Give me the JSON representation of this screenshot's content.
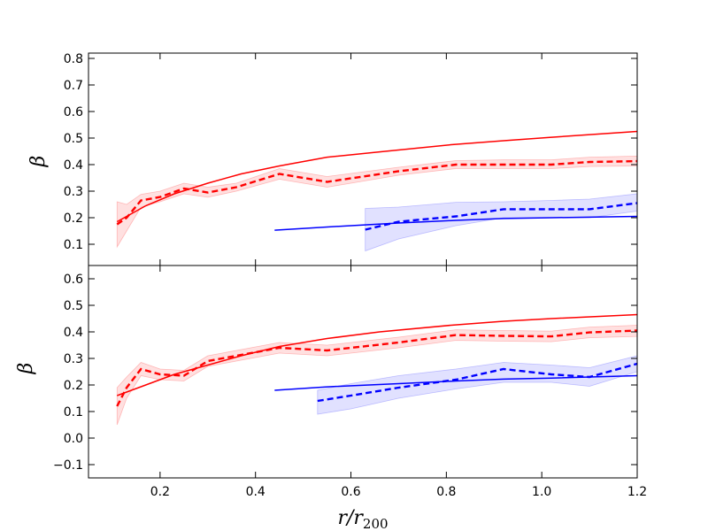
{
  "chart_data": [
    {
      "type": "line",
      "panel": "top",
      "title": "",
      "xlabel": "",
      "ylabel": "β",
      "xlim": [
        0.05,
        1.2
      ],
      "ylim": [
        0.02,
        0.82
      ],
      "xticks": [
        "0.2",
        "0.4",
        "0.6",
        "0.8",
        "1.0",
        "1.2"
      ],
      "yticks": [
        "0.1",
        "0.2",
        "0.3",
        "0.4",
        "0.5",
        "0.6",
        "0.7",
        "0.8"
      ],
      "series": [
        {
          "name": "red-solid",
          "color": "#ff0000",
          "style": "solid",
          "x": [
            0.11,
            0.17,
            0.23,
            0.3,
            0.37,
            0.45,
            0.55,
            0.66,
            0.81,
            0.92,
            1.02,
            1.2
          ],
          "y": [
            0.185,
            0.245,
            0.29,
            0.33,
            0.365,
            0.395,
            0.428,
            0.448,
            0.475,
            0.49,
            0.503,
            0.525
          ]
        },
        {
          "name": "red-dashed",
          "color": "#ff0000",
          "style": "dashed",
          "x": [
            0.11,
            0.13,
            0.16,
            0.2,
            0.25,
            0.3,
            0.36,
            0.45,
            0.55,
            0.7,
            0.82,
            0.92,
            1.02,
            1.1,
            1.2
          ],
          "y": [
            0.175,
            0.2,
            0.265,
            0.278,
            0.31,
            0.295,
            0.315,
            0.365,
            0.335,
            0.375,
            0.4,
            0.4,
            0.4,
            0.41,
            0.413
          ],
          "band_low": [
            0.09,
            0.15,
            0.24,
            0.26,
            0.29,
            0.277,
            0.3,
            0.345,
            0.315,
            0.36,
            0.385,
            0.385,
            0.385,
            0.393,
            0.395
          ],
          "band_high": [
            0.26,
            0.25,
            0.288,
            0.3,
            0.33,
            0.315,
            0.33,
            0.385,
            0.355,
            0.39,
            0.415,
            0.418,
            0.418,
            0.428,
            0.432
          ]
        },
        {
          "name": "blue-solid",
          "color": "#0000ff",
          "style": "solid",
          "x": [
            0.44,
            0.55,
            0.7,
            0.82,
            0.92,
            1.02,
            1.2
          ],
          "y": [
            0.153,
            0.165,
            0.18,
            0.19,
            0.197,
            0.2,
            0.205
          ]
        },
        {
          "name": "blue-dashed",
          "color": "#0000ff",
          "style": "dashed",
          "x": [
            0.63,
            0.7,
            0.82,
            0.92,
            1.02,
            1.1,
            1.2
          ],
          "y": [
            0.155,
            0.185,
            0.205,
            0.232,
            0.232,
            0.232,
            0.255
          ],
          "band_low": [
            0.075,
            0.12,
            0.17,
            0.2,
            0.2,
            0.2,
            0.225
          ],
          "band_high": [
            0.235,
            0.24,
            0.258,
            0.26,
            0.265,
            0.27,
            0.29
          ]
        }
      ]
    },
    {
      "type": "line",
      "panel": "bottom",
      "title": "",
      "xlabel": "r/r",
      "xlabel_sub": "200",
      "ylabel": "β",
      "xlim": [
        0.05,
        1.2
      ],
      "ylim": [
        -0.15,
        0.65
      ],
      "xticks": [
        "0.2",
        "0.4",
        "0.6",
        "0.8",
        "1.0",
        "1.2"
      ],
      "yticks": [
        "−0.1",
        "0.0",
        "0.1",
        "0.2",
        "0.3",
        "0.4",
        "0.5",
        "0.6"
      ],
      "series": [
        {
          "name": "red-solid",
          "color": "#ff0000",
          "style": "solid",
          "x": [
            0.11,
            0.17,
            0.23,
            0.3,
            0.37,
            0.45,
            0.55,
            0.66,
            0.81,
            0.92,
            1.02,
            1.2
          ],
          "y": [
            0.16,
            0.2,
            0.24,
            0.275,
            0.31,
            0.345,
            0.375,
            0.4,
            0.425,
            0.44,
            0.45,
            0.465
          ]
        },
        {
          "name": "red-dashed",
          "color": "#ff0000",
          "style": "dashed",
          "x": [
            0.11,
            0.13,
            0.16,
            0.2,
            0.25,
            0.3,
            0.36,
            0.45,
            0.55,
            0.7,
            0.82,
            0.92,
            1.02,
            1.1,
            1.2
          ],
          "y": [
            0.12,
            0.19,
            0.26,
            0.24,
            0.235,
            0.29,
            0.31,
            0.34,
            0.33,
            0.36,
            0.388,
            0.385,
            0.383,
            0.398,
            0.405
          ],
          "band_low": [
            0.05,
            0.15,
            0.235,
            0.22,
            0.215,
            0.27,
            0.29,
            0.32,
            0.31,
            0.34,
            0.368,
            0.365,
            0.363,
            0.378,
            0.383
          ],
          "band_high": [
            0.19,
            0.23,
            0.285,
            0.26,
            0.255,
            0.31,
            0.33,
            0.36,
            0.35,
            0.38,
            0.408,
            0.405,
            0.403,
            0.418,
            0.425
          ]
        },
        {
          "name": "blue-solid",
          "color": "#0000ff",
          "style": "solid",
          "x": [
            0.44,
            0.55,
            0.7,
            0.82,
            0.92,
            1.02,
            1.2
          ],
          "y": [
            0.18,
            0.193,
            0.205,
            0.215,
            0.222,
            0.226,
            0.235
          ]
        },
        {
          "name": "blue-dashed",
          "color": "#0000ff",
          "style": "dashed",
          "x": [
            0.53,
            0.6,
            0.7,
            0.82,
            0.92,
            1.02,
            1.1,
            1.2
          ],
          "y": [
            0.14,
            0.16,
            0.19,
            0.22,
            0.26,
            0.24,
            0.23,
            0.28
          ],
          "band_low": [
            0.09,
            0.11,
            0.15,
            0.185,
            0.21,
            0.21,
            0.195,
            0.25
          ],
          "band_high": [
            0.18,
            0.205,
            0.235,
            0.26,
            0.285,
            0.275,
            0.265,
            0.31
          ]
        }
      ]
    }
  ]
}
